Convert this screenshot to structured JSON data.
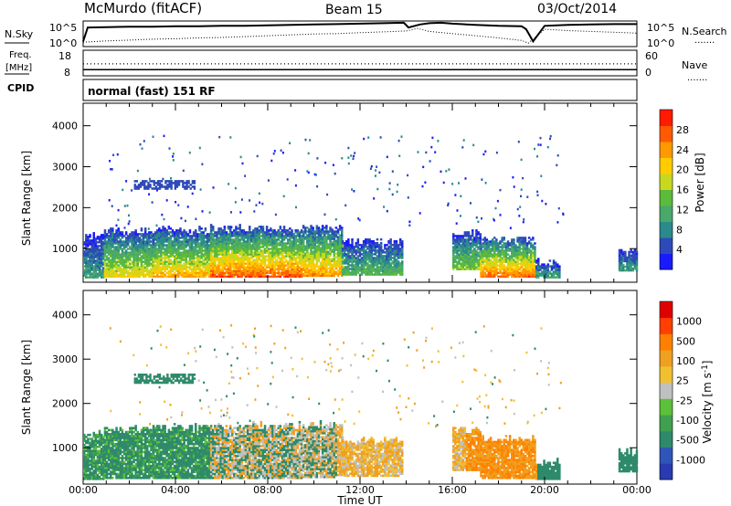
{
  "header": {
    "station": "McMurdo (fitACF)",
    "beam": "Beam 15",
    "date": "03/Oct/2014"
  },
  "panel_labels": {
    "nsky": "N.Sky",
    "nsearch": "N.Search",
    "freq_line1": "Freq.",
    "freq_line2": "[MHz]",
    "cpid": "CPID",
    "nave": "Nave",
    "mode": "normal (fast) 151 RF",
    "dotted_key": "......."
  },
  "chart_data": [
    {
      "type": "line",
      "panel": "noise",
      "left_ticks": [
        "10^5",
        "10^0"
      ],
      "right_ticks": [
        "10^5",
        "10^0"
      ],
      "series": [
        {
          "name": "N.Sky",
          "style": "solid",
          "x": [
            0,
            0.2,
            1,
            2,
            3,
            4,
            5,
            6,
            7,
            8,
            9,
            10,
            11,
            12,
            13,
            13.9,
            14.1,
            14.6,
            15,
            15.5,
            16,
            17,
            18,
            19,
            19.2,
            19.5,
            20,
            21,
            22,
            23,
            24
          ],
          "y": [
            1.0,
            4.2,
            4.3,
            4.4,
            4.4,
            4.5,
            4.5,
            4.6,
            4.6,
            4.7,
            4.8,
            4.9,
            5.0,
            5.1,
            5.2,
            5.3,
            4.2,
            4.9,
            5.2,
            5.3,
            5.1,
            4.8,
            4.6,
            4.5,
            3.8,
            1.0,
            4.6,
            4.8,
            4.9,
            5.0,
            5.0
          ]
        },
        {
          "name": "N.Search",
          "style": "dotted",
          "x": [
            0,
            1,
            2,
            3,
            4,
            5,
            6,
            7,
            8,
            9,
            10,
            11,
            12,
            13,
            14,
            14.5,
            15,
            16,
            17,
            18,
            19,
            19.3,
            20,
            21,
            22,
            23,
            24
          ],
          "y": [
            0.8,
            1.1,
            1.3,
            1.5,
            1.6,
            1.8,
            1.9,
            2.1,
            2.3,
            2.5,
            2.7,
            2.8,
            3.0,
            3.2,
            3.4,
            4.0,
            3.3,
            2.8,
            2.3,
            1.8,
            1.2,
            0.6,
            3.8,
            3.5,
            3.3,
            3.1,
            2.9
          ]
        }
      ]
    },
    {
      "type": "line",
      "panel": "freq_nave",
      "left_ticks": [
        "18",
        "8"
      ],
      "right_ticks": [
        "60",
        "0"
      ],
      "series": [
        {
          "name": "Freq.",
          "style": "solid",
          "x": [
            0,
            24
          ],
          "y": [
            10.2,
            10.2
          ]
        },
        {
          "name": "Nave",
          "style": "dotted",
          "x": [
            0,
            24
          ],
          "y": [
            28,
            28
          ]
        }
      ]
    },
    {
      "type": "heatmap",
      "panel": "power",
      "title": "Power [dB]",
      "ylabel": "Slant Range [km]",
      "xlabel": "Time UT",
      "x_range_hours": [
        0,
        24
      ],
      "y_range_km": [
        180,
        4550
      ],
      "yticks": [
        1000,
        2000,
        3000,
        4000
      ],
      "xtick_labels": [
        "00:00",
        "04:00",
        "08:00",
        "12:00",
        "16:00",
        "20:00",
        "00:00"
      ],
      "colorbar_ticks": [
        "4",
        "8",
        "12",
        "16",
        "20",
        "24",
        "28"
      ],
      "colorbar_colors": [
        "#1a1aff",
        "#2e4ab8",
        "#2a8a8c",
        "#4aa86a",
        "#5cbb3a",
        "#c8d820",
        "#ffcc00",
        "#ff9900",
        "#ff5a00",
        "#ff1a00"
      ]
    },
    {
      "type": "heatmap",
      "panel": "velocity",
      "title": "Velocity [m s^-1]",
      "ylabel": "Slant Range [km]",
      "xlabel": "Time UT",
      "x_range_hours": [
        0,
        24
      ],
      "y_range_km": [
        180,
        4550
      ],
      "yticks": [
        1000,
        2000,
        3000,
        4000
      ],
      "xtick_labels": [
        "00:00",
        "04:00",
        "08:00",
        "12:00",
        "16:00",
        "20:00",
        "00:00"
      ],
      "colorbar_ticks": [
        "1000",
        "500",
        "100",
        "25",
        "-25",
        "-100",
        "-500",
        "-1000"
      ],
      "colorbar_colors": [
        "#2a3ab0",
        "#3055b8",
        "#2e8a6a",
        "#3fa050",
        "#5cc03a",
        "#c0c0c0",
        "#f0c030",
        "#f0a020",
        "#ff8000",
        "#ff4000",
        "#e00000"
      ]
    }
  ]
}
